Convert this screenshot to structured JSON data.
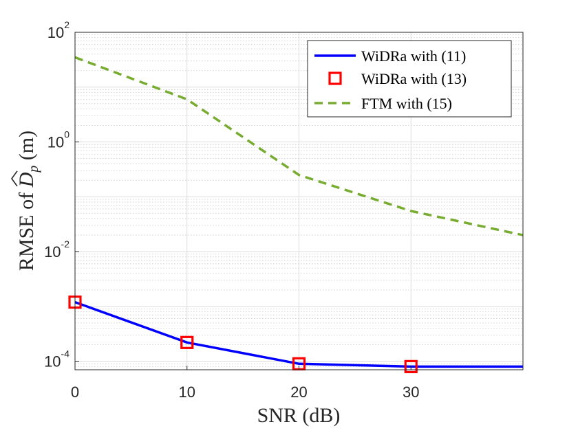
{
  "chart_data": {
    "type": "line",
    "yscale": "log",
    "xlabel": "SNR (dB)",
    "ylabel": {
      "prefix": "RMSE of ",
      "symbol": "D",
      "subscript": "p",
      "suffix": " (m)"
    },
    "xlim": [
      0,
      40
    ],
    "ylim": [
      7e-05,
      100
    ],
    "xticks": [
      0,
      10,
      20,
      30
    ],
    "xtick_labels": [
      "0",
      "10",
      "20",
      "30"
    ],
    "ytick_labels": [
      {
        "value": 100,
        "base": "10",
        "exp": "2"
      },
      {
        "value": 1,
        "base": "10",
        "exp": "0"
      },
      {
        "value": 0.01,
        "base": "10",
        "exp": "-2"
      },
      {
        "value": 0.0001,
        "base": "10",
        "exp": "-4"
      }
    ],
    "grid": true,
    "legend_position": "top-right",
    "series": [
      {
        "name": "WiDRa with (11)",
        "style": "solid-line",
        "color": "#0000ff",
        "x": [
          0,
          10,
          20,
          30,
          40
        ],
        "y": [
          0.0012,
          0.00022,
          9e-05,
          8e-05,
          8e-05
        ]
      },
      {
        "name": "WiDRa with (13)",
        "style": "square-markers",
        "color": "#ff0000",
        "x": [
          0,
          10,
          20,
          30
        ],
        "y": [
          0.0012,
          0.00022,
          9e-05,
          8e-05
        ]
      },
      {
        "name": "FTM with (15)",
        "style": "dashed-line",
        "color": "#77ac30",
        "x": [
          0,
          10,
          20,
          30,
          40
        ],
        "y": [
          35,
          6,
          0.25,
          0.055,
          0.02
        ]
      }
    ]
  }
}
